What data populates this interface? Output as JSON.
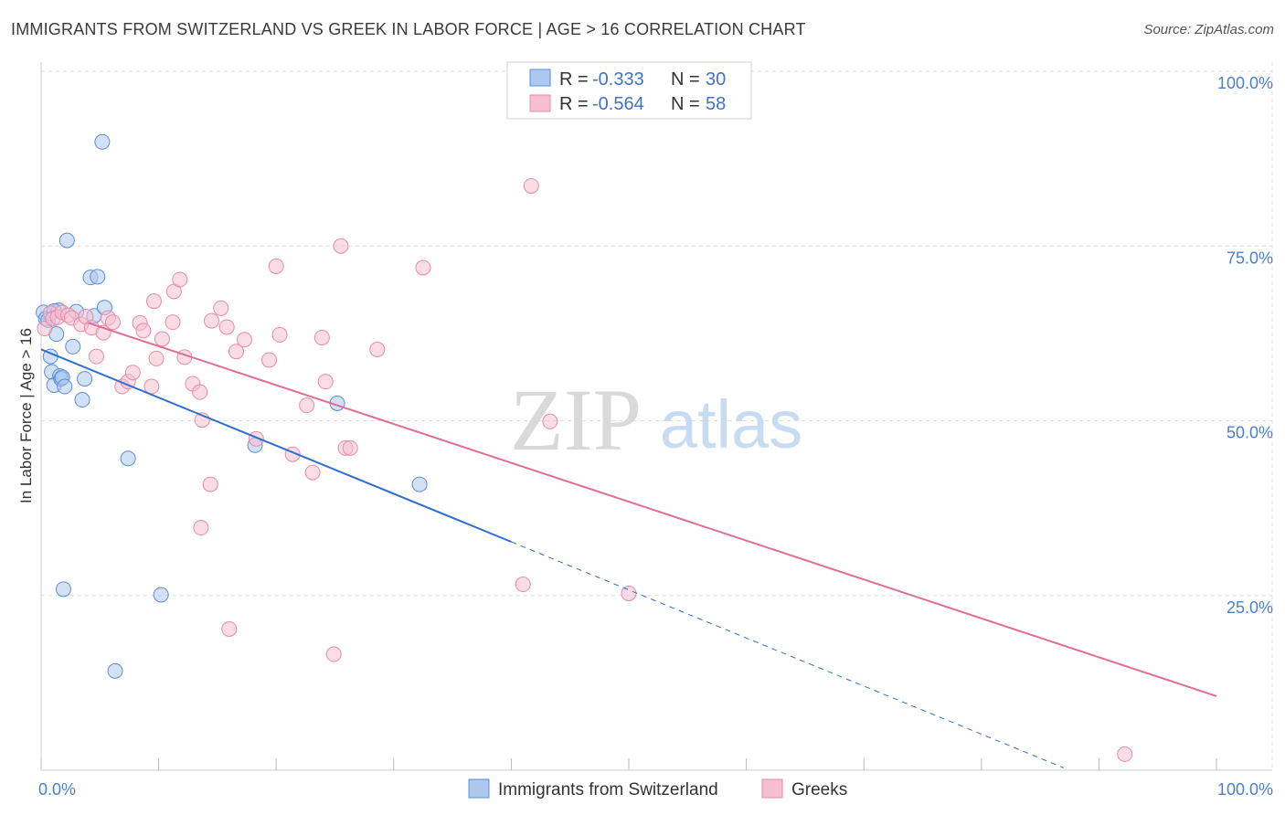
{
  "header": {
    "title": "IMMIGRANTS FROM SWITZERLAND VS GREEK IN LABOR FORCE | AGE > 16 CORRELATION CHART",
    "source": "Source: ZipAtlas.com"
  },
  "watermark": {
    "zip": "ZIP",
    "atlas": "atlas"
  },
  "legend_top": {
    "rows": [
      {
        "r_label": "R =",
        "r_value": "-0.333",
        "n_label": "N =",
        "n_value": "30"
      },
      {
        "r_label": "R =",
        "r_value": "-0.564",
        "n_label": "N =",
        "n_value": "58"
      }
    ]
  },
  "legend_bottom": {
    "items": [
      "Immigrants from Switzerland",
      "Greeks"
    ]
  },
  "colors": {
    "blue_fill": "#adc8ee",
    "blue_stroke": "#5b8ed6",
    "blue_line": "#2f6fcf",
    "pink_fill": "#f6bfd0",
    "pink_stroke": "#e88aa8",
    "pink_line": "#e06d96",
    "tick_text": "#4a7fd0"
  },
  "chart_data": {
    "type": "scatter",
    "title": "IMMIGRANTS FROM SWITZERLAND VS GREEK IN LABOR FORCE | AGE > 16 CORRELATION CHART",
    "xlabel": "",
    "ylabel": "In Labor Force | Age > 16",
    "xlim": [
      0,
      100
    ],
    "ylim": [
      0,
      100
    ],
    "x_ticks": [
      "0.0%",
      "100.0%"
    ],
    "y_ticks": [
      "25.0%",
      "50.0%",
      "75.0%",
      "100.0%"
    ],
    "grid": true,
    "series": [
      {
        "name": "Immigrants from Switzerland",
        "color": "blue",
        "points": [
          [
            0.2,
            65.5
          ],
          [
            0.4,
            64.6
          ],
          [
            0.8,
            59.2
          ],
          [
            0.9,
            57.0
          ],
          [
            1.1,
            55.1
          ],
          [
            1.3,
            62.4
          ],
          [
            1.5,
            65.8
          ],
          [
            1.6,
            56.4
          ],
          [
            1.7,
            56.0
          ],
          [
            1.8,
            56.2
          ],
          [
            2.0,
            54.9
          ],
          [
            2.2,
            75.8
          ],
          [
            2.7,
            60.6
          ],
          [
            3.0,
            65.6
          ],
          [
            3.5,
            53.0
          ],
          [
            3.7,
            56.0
          ],
          [
            4.2,
            70.5
          ],
          [
            4.5,
            65.0
          ],
          [
            4.8,
            70.6
          ],
          [
            5.2,
            89.9
          ],
          [
            5.4,
            66.2
          ],
          [
            6.3,
            14.2
          ],
          [
            7.4,
            44.6
          ],
          [
            10.2,
            25.1
          ],
          [
            1.9,
            25.9
          ],
          [
            1.1,
            65.7
          ],
          [
            18.2,
            46.5
          ],
          [
            25.2,
            52.5
          ],
          [
            32.2,
            40.9
          ],
          [
            0.6,
            64.4
          ]
        ],
        "trend": {
          "x_start": 0,
          "y_start": 60.2,
          "x_solid_end": 40,
          "x_end": 100,
          "y_end": -8.6
        }
      },
      {
        "name": "Greeks",
        "color": "pink",
        "points": [
          [
            0.3,
            63.2
          ],
          [
            0.8,
            65.4
          ],
          [
            1.0,
            64.6
          ],
          [
            1.4,
            64.8
          ],
          [
            1.8,
            65.5
          ],
          [
            2.3,
            65.1
          ],
          [
            2.6,
            64.7
          ],
          [
            3.4,
            63.8
          ],
          [
            3.8,
            64.9
          ],
          [
            4.3,
            63.3
          ],
          [
            4.7,
            59.2
          ],
          [
            5.3,
            62.6
          ],
          [
            5.7,
            64.7
          ],
          [
            6.1,
            64.1
          ],
          [
            6.9,
            54.9
          ],
          [
            7.4,
            55.6
          ],
          [
            7.8,
            56.9
          ],
          [
            8.4,
            64.0
          ],
          [
            8.7,
            62.9
          ],
          [
            9.6,
            67.1
          ],
          [
            9.8,
            58.9
          ],
          [
            10.3,
            61.7
          ],
          [
            11.2,
            64.1
          ],
          [
            11.3,
            68.5
          ],
          [
            11.8,
            70.2
          ],
          [
            12.2,
            59.1
          ],
          [
            12.9,
            55.3
          ],
          [
            13.5,
            54.1
          ],
          [
            14.5,
            64.3
          ],
          [
            15.3,
            66.1
          ],
          [
            15.8,
            63.4
          ],
          [
            16.6,
            59.9
          ],
          [
            17.3,
            61.6
          ],
          [
            18.3,
            47.4
          ],
          [
            19.4,
            58.7
          ],
          [
            20.0,
            72.1
          ],
          [
            20.3,
            62.3
          ],
          [
            21.4,
            45.2
          ],
          [
            22.6,
            52.2
          ],
          [
            23.1,
            42.6
          ],
          [
            23.9,
            61.9
          ],
          [
            24.2,
            55.6
          ],
          [
            25.5,
            75.0
          ],
          [
            25.9,
            46.1
          ],
          [
            26.3,
            46.1
          ],
          [
            28.6,
            60.2
          ],
          [
            32.5,
            71.9
          ],
          [
            41.0,
            26.6
          ],
          [
            41.7,
            83.6
          ],
          [
            43.3,
            49.9
          ],
          [
            50.0,
            25.3
          ],
          [
            16.0,
            20.2
          ],
          [
            24.9,
            16.6
          ],
          [
            13.6,
            34.7
          ],
          [
            14.4,
            40.9
          ],
          [
            13.7,
            50.1
          ],
          [
            9.4,
            54.9
          ],
          [
            92.2,
            2.3
          ]
        ],
        "trend": {
          "x_start": 4,
          "y_start": 64.0,
          "x_end": 100,
          "y_end": 10.6
        }
      }
    ]
  }
}
